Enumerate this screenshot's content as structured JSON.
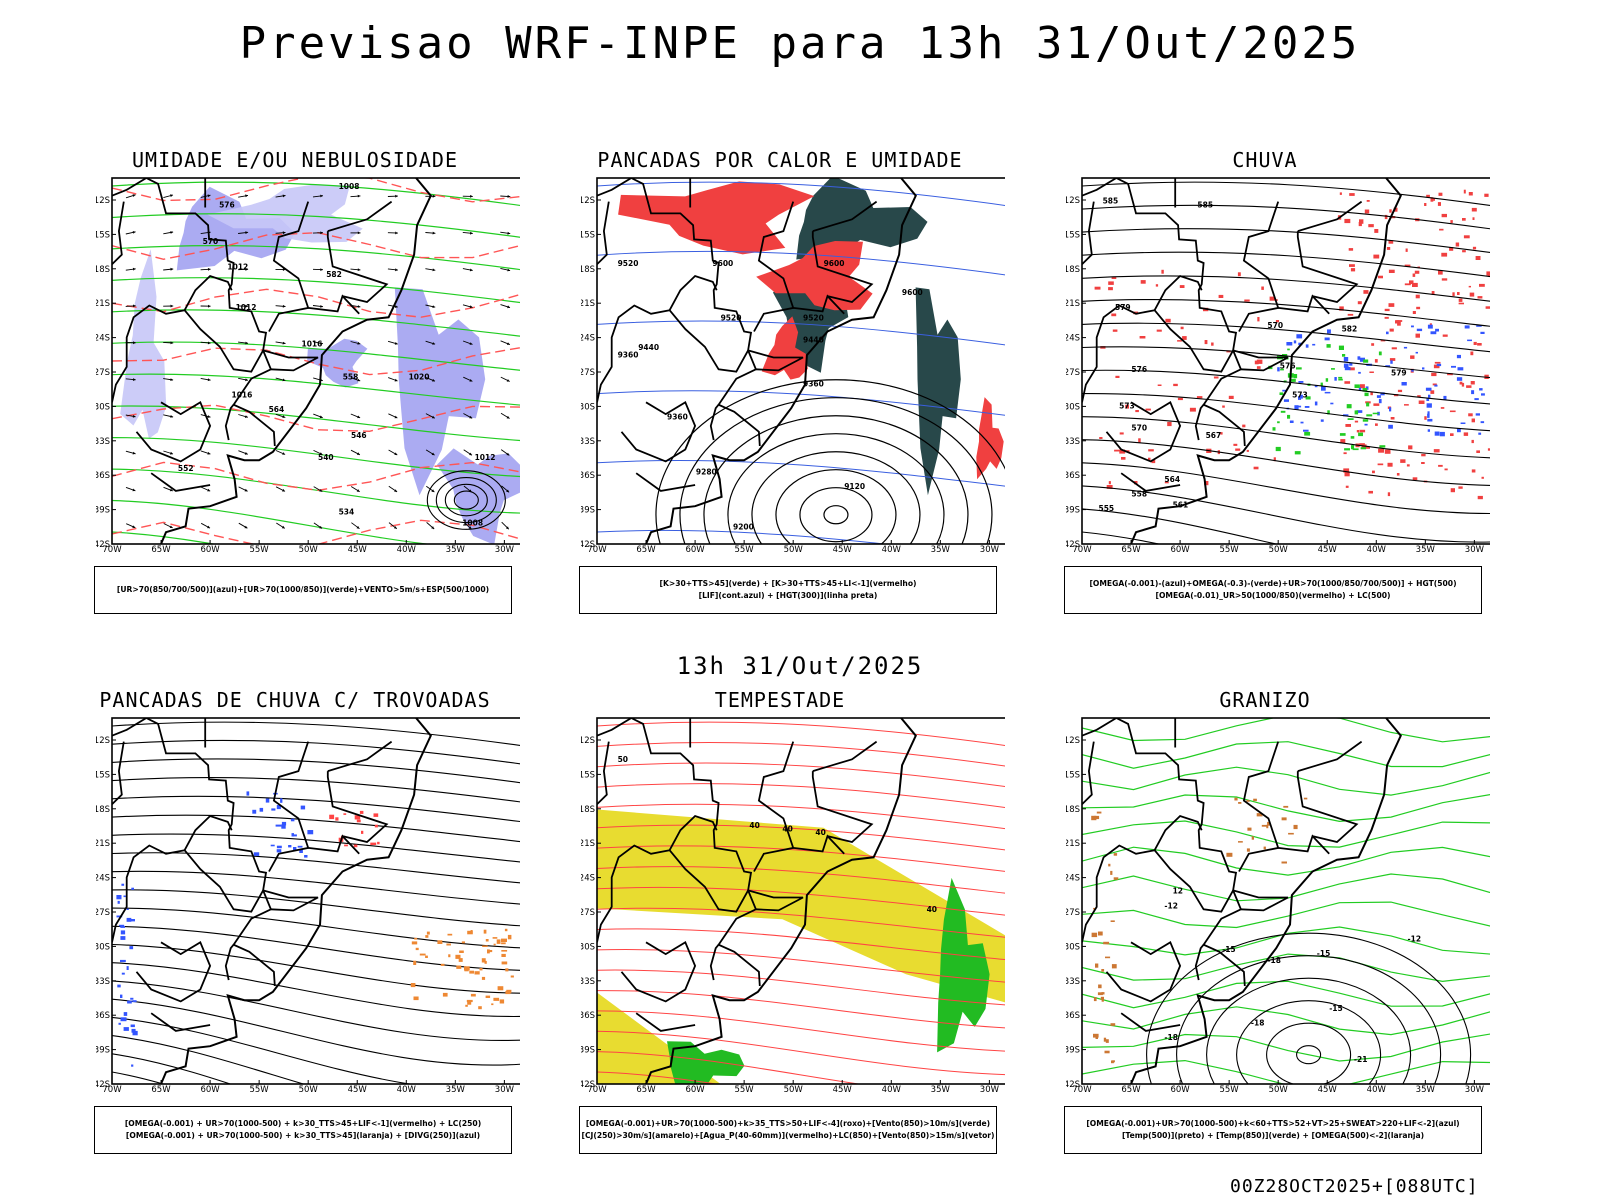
{
  "title": "Previsao WRF-INPE  para 13h 31/Out/2025",
  "subtitle": "13h 31/Out/2025",
  "footer": "00Z28OCT2025+[088UTC]",
  "axes": {
    "lat_labels": [
      "12S",
      "15S",
      "18S",
      "21S",
      "24S",
      "27S",
      "30S",
      "33S",
      "36S",
      "39S",
      "42S"
    ],
    "lon_labels": [
      "70W",
      "65W",
      "60W",
      "55W",
      "50W",
      "45W",
      "40W",
      "35W",
      "30W"
    ]
  },
  "panels": [
    {
      "title": "UMIDADE E/OU NEBULOSIDADE",
      "legend": [
        "[UR>70(850/700/500)](azul)+[UR>70(1000/850)](verde)+VENTO>5m/s+ESP(500/1000)"
      ],
      "labels": [
        "1008",
        "1012",
        "1016",
        "1020",
        "1012",
        "1016",
        "570",
        "576",
        "582",
        "564",
        "558",
        "546",
        "552",
        "540",
        "534",
        "1008",
        "1012"
      ]
    },
    {
      "title": "PANCADAS POR CALOR E UMIDADE",
      "legend": [
        "[K>30+TTS>45](verde) + [K>30+TTS>45+LI<-1](vermelho)",
        "[LIF](cont.azul) + [HGT(300)](linha preta)"
      ],
      "labels": [
        "9520",
        "9600",
        "9600",
        "9520",
        "9520",
        "9440",
        "9360",
        "9440",
        "9360",
        "9280",
        "9200",
        "9120",
        "9600",
        "9360"
      ]
    },
    {
      "title": "CHUVA",
      "legend": [
        "[OMEGA(-0.001)-(azul)+OMEGA(-0.3)-(verde)+UR>70(1000/850/700/500)] + HGT(500)",
        "[OMEGA(-0.01)_UR>50(1000/850)(vermelho) + LC(500)"
      ],
      "labels": [
        "585",
        "585",
        "579",
        "576",
        "573",
        "570",
        "567",
        "564",
        "558",
        "561",
        "555",
        "582",
        "579",
        "576",
        "573",
        "570"
      ]
    },
    {
      "title": "PANCADAS DE CHUVA C/ TROVOADAS",
      "legend": [
        "[OMEGA(-0.001) + UR>70(1000-500) + k>30_TTS>45+LIF<-1](vermelho) + LC(250)",
        "[OMEGA(-0.001) + UR>70(1000-500) + k>30_TTS>45](laranja) + [DIVG(250)](azul)"
      ],
      "labels": []
    },
    {
      "title": "TEMPESTADE",
      "legend": [
        "[OMEGA(-0.001)+UR>70(1000-500)+k>35_TTS>50+LIF<-4](roxo)+[Vento(850)>10m/s](verde)",
        "[CJ(250)>30m/s](amarelo)+[Agua_P(40-60mm)](vermelho)+LC(850)+[Vento(850)>15m/s](vetor)"
      ],
      "labels": [
        "40",
        "40",
        "40",
        "50",
        "40"
      ]
    },
    {
      "title": "GRANIZO",
      "legend": [
        "[OMEGA(-0.001)+UR>70(1000-500)+k<60+TTS>52+VT>25+SWEAT>220+LIF<-2](azul)",
        "[Temp(500)](preto) + [Temp(850)](verde) + [OMEGA(500)<-2](laranja)"
      ],
      "labels": [
        "-12",
        "-15",
        "-18",
        "-15",
        "-12",
        "-15",
        "-18",
        "-21",
        "-18",
        "12"
      ]
    }
  ]
}
